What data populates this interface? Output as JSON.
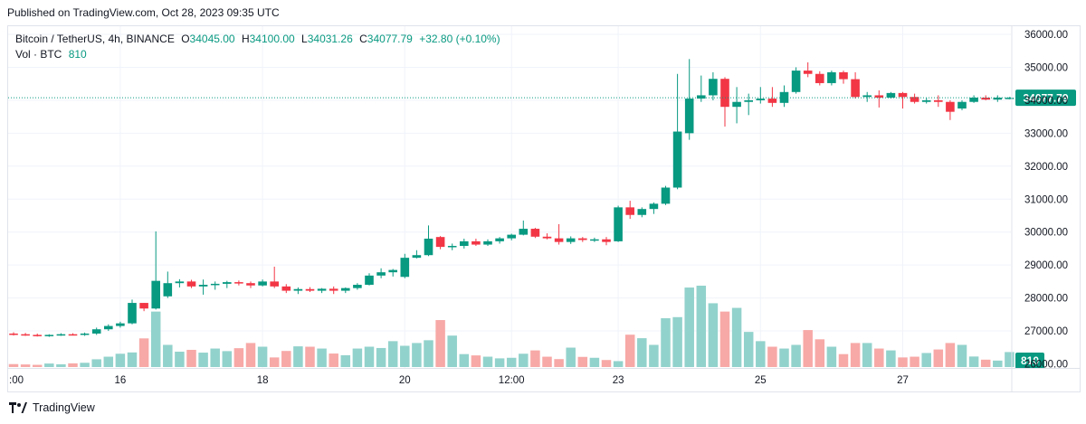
{
  "published": "Published on TradingView.com, Oct 28, 2023 09:35 UTC",
  "legend": {
    "symbol": "Bitcoin / TetherUS, 4h, BINANCE",
    "o_label": "O",
    "o_value": "34045.00",
    "h_label": "H",
    "h_value": "34100.00",
    "l_label": "L",
    "l_value": "34031.26",
    "c_label": "C",
    "c_value": "34077.79",
    "change": "+32.80 (+0.10%)",
    "vol_label": "Vol · BTC",
    "vol_value": "810"
  },
  "footer": {
    "brand": "TradingView"
  },
  "colors": {
    "up": "#089981",
    "down": "#f23645",
    "vol_up": "#92d2cc",
    "vol_down": "#f7a9a7",
    "price_line": "#089981"
  },
  "chart_data": {
    "type": "candlestick",
    "symbol": "BTCUSDT",
    "interval": "4h",
    "y_ticks": [
      "27000.00",
      "28000.00",
      "29000.00",
      "30000.00",
      "31000.00",
      "32000.00",
      "33000.00",
      "34000.00",
      "35000.00",
      "36000.00"
    ],
    "y_tick_bottom": "26000.00",
    "ylim": [
      25900,
      36250
    ],
    "x_ticks": [
      {
        "label": ":00",
        "index": 0
      },
      {
        "label": "16",
        "index": 9
      },
      {
        "label": "18",
        "index": 21
      },
      {
        "label": "20",
        "index": 33
      },
      {
        "label": "12:00",
        "index": 42
      },
      {
        "label": "23",
        "index": 51
      },
      {
        "label": "25",
        "index": 63
      },
      {
        "label": "27",
        "index": 75
      }
    ],
    "last_price_label": "34077.79",
    "last_price": 34077.79,
    "last_volume_label": "810",
    "candles": [
      {
        "o": 26920,
        "h": 26960,
        "l": 26860,
        "c": 26900
      },
      {
        "o": 26900,
        "h": 26940,
        "l": 26850,
        "c": 26880
      },
      {
        "o": 26880,
        "h": 26920,
        "l": 26830,
        "c": 26860
      },
      {
        "o": 26860,
        "h": 26900,
        "l": 26820,
        "c": 26880
      },
      {
        "o": 26880,
        "h": 26930,
        "l": 26850,
        "c": 26900
      },
      {
        "o": 26900,
        "h": 26930,
        "l": 26860,
        "c": 26890
      },
      {
        "o": 26890,
        "h": 26950,
        "l": 26850,
        "c": 26920
      },
      {
        "o": 26920,
        "h": 27100,
        "l": 26880,
        "c": 27050
      },
      {
        "o": 27050,
        "h": 27200,
        "l": 27000,
        "c": 27150
      },
      {
        "o": 27150,
        "h": 27280,
        "l": 27100,
        "c": 27230
      },
      {
        "o": 27230,
        "h": 27950,
        "l": 27200,
        "c": 27850
      },
      {
        "o": 27850,
        "h": 27850,
        "l": 27600,
        "c": 27680
      },
      {
        "o": 27680,
        "h": 30020,
        "l": 27650,
        "c": 28520
      },
      {
        "o": 28050,
        "h": 28800,
        "l": 28000,
        "c": 28450
      },
      {
        "o": 28450,
        "h": 28570,
        "l": 28320,
        "c": 28500
      },
      {
        "o": 28500,
        "h": 28550,
        "l": 28300,
        "c": 28350
      },
      {
        "o": 28350,
        "h": 28560,
        "l": 28100,
        "c": 28400
      },
      {
        "o": 28400,
        "h": 28500,
        "l": 28250,
        "c": 28430
      },
      {
        "o": 28430,
        "h": 28520,
        "l": 28300,
        "c": 28480
      },
      {
        "o": 28480,
        "h": 28530,
        "l": 28380,
        "c": 28450
      },
      {
        "o": 28450,
        "h": 28500,
        "l": 28300,
        "c": 28380
      },
      {
        "o": 28380,
        "h": 28560,
        "l": 28350,
        "c": 28500
      },
      {
        "o": 28500,
        "h": 28950,
        "l": 28300,
        "c": 28350
      },
      {
        "o": 28350,
        "h": 28420,
        "l": 28150,
        "c": 28220
      },
      {
        "o": 28220,
        "h": 28320,
        "l": 28120,
        "c": 28270
      },
      {
        "o": 28270,
        "h": 28330,
        "l": 28180,
        "c": 28220
      },
      {
        "o": 28220,
        "h": 28300,
        "l": 28150,
        "c": 28280
      },
      {
        "o": 28280,
        "h": 28350,
        "l": 28120,
        "c": 28220
      },
      {
        "o": 28220,
        "h": 28320,
        "l": 28150,
        "c": 28300
      },
      {
        "o": 28300,
        "h": 28450,
        "l": 28250,
        "c": 28400
      },
      {
        "o": 28400,
        "h": 28750,
        "l": 28380,
        "c": 28680
      },
      {
        "o": 28680,
        "h": 28900,
        "l": 28600,
        "c": 28780
      },
      {
        "o": 28780,
        "h": 28880,
        "l": 28650,
        "c": 28850
      },
      {
        "o": 28640,
        "h": 29340,
        "l": 28600,
        "c": 29220
      },
      {
        "o": 29220,
        "h": 29450,
        "l": 29200,
        "c": 29300
      },
      {
        "o": 29300,
        "h": 30200,
        "l": 29270,
        "c": 29800
      },
      {
        "o": 29850,
        "h": 29880,
        "l": 29480,
        "c": 29550
      },
      {
        "o": 29550,
        "h": 29650,
        "l": 29450,
        "c": 29580
      },
      {
        "o": 29580,
        "h": 29800,
        "l": 29500,
        "c": 29720
      },
      {
        "o": 29720,
        "h": 29800,
        "l": 29580,
        "c": 29620
      },
      {
        "o": 29620,
        "h": 29780,
        "l": 29580,
        "c": 29720
      },
      {
        "o": 29720,
        "h": 29850,
        "l": 29650,
        "c": 29810
      },
      {
        "o": 29810,
        "h": 29950,
        "l": 29750,
        "c": 29920
      },
      {
        "o": 29920,
        "h": 30350,
        "l": 29900,
        "c": 30100
      },
      {
        "o": 30100,
        "h": 30130,
        "l": 29820,
        "c": 29860
      },
      {
        "o": 29860,
        "h": 29960,
        "l": 29780,
        "c": 29810
      },
      {
        "o": 29810,
        "h": 30240,
        "l": 29620,
        "c": 29700
      },
      {
        "o": 29700,
        "h": 29870,
        "l": 29640,
        "c": 29810
      },
      {
        "o": 29810,
        "h": 29850,
        "l": 29700,
        "c": 29760
      },
      {
        "o": 29760,
        "h": 29830,
        "l": 29700,
        "c": 29780
      },
      {
        "o": 29780,
        "h": 29850,
        "l": 29600,
        "c": 29700
      },
      {
        "o": 29720,
        "h": 30800,
        "l": 29700,
        "c": 30750
      },
      {
        "o": 30750,
        "h": 30950,
        "l": 30400,
        "c": 30520
      },
      {
        "o": 30520,
        "h": 30750,
        "l": 30450,
        "c": 30700
      },
      {
        "o": 30700,
        "h": 30900,
        "l": 30550,
        "c": 30860
      },
      {
        "o": 30860,
        "h": 31400,
        "l": 30820,
        "c": 31350
      },
      {
        "o": 31350,
        "h": 34800,
        "l": 31300,
        "c": 33050
      },
      {
        "o": 33000,
        "h": 35250,
        "l": 32800,
        "c": 34050
      },
      {
        "o": 34050,
        "h": 34750,
        "l": 33950,
        "c": 34150
      },
      {
        "o": 34150,
        "h": 34850,
        "l": 34000,
        "c": 34650
      },
      {
        "o": 34650,
        "h": 34700,
        "l": 33200,
        "c": 33800
      },
      {
        "o": 33800,
        "h": 34400,
        "l": 33300,
        "c": 33950
      },
      {
        "o": 33950,
        "h": 34200,
        "l": 33550,
        "c": 34000
      },
      {
        "o": 34000,
        "h": 34400,
        "l": 33900,
        "c": 34050
      },
      {
        "o": 34050,
        "h": 34400,
        "l": 33800,
        "c": 33920
      },
      {
        "o": 33920,
        "h": 34450,
        "l": 33800,
        "c": 34250
      },
      {
        "o": 34250,
        "h": 35000,
        "l": 34200,
        "c": 34900
      },
      {
        "o": 34900,
        "h": 35150,
        "l": 34700,
        "c": 34800
      },
      {
        "o": 34800,
        "h": 34880,
        "l": 34450,
        "c": 34520
      },
      {
        "o": 34520,
        "h": 34900,
        "l": 34450,
        "c": 34850
      },
      {
        "o": 34850,
        "h": 34900,
        "l": 34500,
        "c": 34640
      },
      {
        "o": 34640,
        "h": 34850,
        "l": 34050,
        "c": 34100
      },
      {
        "o": 34100,
        "h": 34250,
        "l": 33950,
        "c": 34150
      },
      {
        "o": 34150,
        "h": 34300,
        "l": 33780,
        "c": 34080
      },
      {
        "o": 34080,
        "h": 34250,
        "l": 34050,
        "c": 34220
      },
      {
        "o": 34220,
        "h": 34250,
        "l": 33750,
        "c": 34100
      },
      {
        "o": 34100,
        "h": 34200,
        "l": 33900,
        "c": 33950
      },
      {
        "o": 33950,
        "h": 34080,
        "l": 33900,
        "c": 34000
      },
      {
        "o": 34000,
        "h": 34150,
        "l": 33800,
        "c": 33950
      },
      {
        "o": 33950,
        "h": 34000,
        "l": 33400,
        "c": 33650
      },
      {
        "o": 33750,
        "h": 34000,
        "l": 33700,
        "c": 33950
      },
      {
        "o": 33950,
        "h": 34150,
        "l": 33920,
        "c": 34080
      },
      {
        "o": 34080,
        "h": 34150,
        "l": 34000,
        "c": 34020
      },
      {
        "o": 34020,
        "h": 34150,
        "l": 33950,
        "c": 34080
      },
      {
        "o": 34045,
        "h": 34100,
        "l": 34031.26,
        "c": 34077.79
      }
    ],
    "volumes": [
      160,
      140,
      120,
      190,
      150,
      200,
      230,
      420,
      560,
      720,
      790,
      1550,
      3000,
      1200,
      830,
      930,
      780,
      1000,
      860,
      1020,
      1300,
      1100,
      520,
      870,
      1120,
      1100,
      1000,
      730,
      640,
      1000,
      1100,
      1030,
      1400,
      1150,
      1300,
      1450,
      2540,
      1700,
      700,
      630,
      560,
      470,
      500,
      720,
      900,
      560,
      430,
      1050,
      550,
      500,
      380,
      320,
      1750,
      1560,
      1200,
      2640,
      2700,
      4300,
      4400,
      3450,
      3000,
      3200,
      1900,
      1400,
      1100,
      1000,
      1200,
      2000,
      1500,
      1100,
      700,
      1300,
      1300,
      1000,
      900,
      520,
      560,
      760,
      950,
      1300,
      1200,
      570,
      400,
      350,
      810
    ]
  }
}
